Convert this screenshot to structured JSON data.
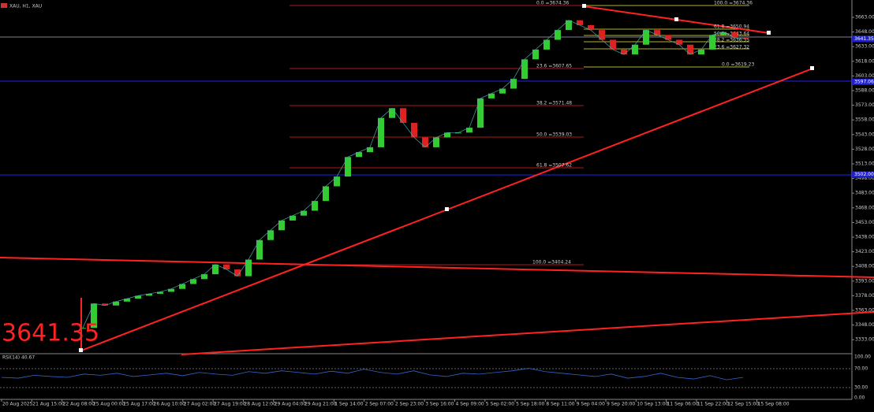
{
  "header": {
    "symbol": "XAU, H1, XAU"
  },
  "last_price": "3641.35",
  "price_axis": {
    "ticks": [
      {
        "value": 3663,
        "label": "3663.00"
      },
      {
        "value": 3648,
        "label": "3648.00"
      },
      {
        "value": 3633,
        "label": "3633.00"
      },
      {
        "value": 3618,
        "label": "3618.00"
      },
      {
        "value": 3603,
        "label": "3603.00"
      },
      {
        "value": 3588,
        "label": "3588.00"
      },
      {
        "value": 3573,
        "label": "3573.00"
      },
      {
        "value": 3558,
        "label": "3558.00"
      },
      {
        "value": 3543,
        "label": "3543.00"
      },
      {
        "value": 3528,
        "label": "3528.00"
      },
      {
        "value": 3513,
        "label": "3513.00"
      },
      {
        "value": 3498,
        "label": "3498.00"
      },
      {
        "value": 3483,
        "label": "3483.00"
      },
      {
        "value": 3468,
        "label": "3468.00"
      },
      {
        "value": 3453,
        "label": "3453.00"
      },
      {
        "value": 3438,
        "label": "3438.00"
      },
      {
        "value": 3423,
        "label": "3423.00"
      },
      {
        "value": 3408,
        "label": "3408.00"
      },
      {
        "value": 3393,
        "label": "3393.00"
      },
      {
        "value": 3378,
        "label": "3378.00"
      },
      {
        "value": 3363,
        "label": "3363.00"
      },
      {
        "value": 3348,
        "label": "3348.00"
      },
      {
        "value": 3333,
        "label": "3333.00"
      }
    ],
    "markers": [
      {
        "value": 3641,
        "label": "3641.35"
      },
      {
        "value": 3597,
        "label": "3597.06"
      },
      {
        "value": 3502,
        "label": "3502.00"
      }
    ]
  },
  "closes": [
    3345,
    3370,
    3368,
    3372,
    3375,
    3378,
    3380,
    3382,
    3385,
    3390,
    3395,
    3400,
    3410,
    3405,
    3398,
    3415,
    3435,
    3445,
    3455,
    3460,
    3465,
    3475,
    3490,
    3500,
    3520,
    3525,
    3530,
    3560,
    3570,
    3555,
    3540,
    3530,
    3540,
    3545,
    3545,
    3550,
    3580,
    3585,
    3590,
    3600,
    3620,
    3630,
    3640,
    3650,
    3660,
    3655,
    3650,
    3640,
    3630,
    3625,
    3635,
    3650,
    3645,
    3640,
    3635,
    3625,
    3630,
    3645,
    3648,
    3642,
    3641
  ],
  "fib_left": [
    "0.0 =3674.36",
    "23.6 =3607.65",
    "38.2 =3571.48",
    "50.0 =3539.03",
    "61.8 =3507.62",
    "100.0 =3404.24"
  ],
  "fib_right": [
    "100.0 =3674.36",
    "61.8 =3650.94",
    "50.0 =3643.64",
    "38.2 =3636.35",
    "23.6 =3627.32",
    "0.0 =3619.23"
  ],
  "rsi": {
    "label": "RSI(14) 40.67",
    "ticks": [
      "100.00",
      "70.00",
      "30.00",
      "0.00"
    ],
    "values": [
      50,
      48,
      55,
      52,
      50,
      58,
      55,
      60,
      52,
      56,
      60,
      54,
      62,
      58,
      55,
      64,
      60,
      66,
      62,
      58,
      65,
      60,
      70,
      62,
      58,
      66,
      56,
      52,
      60,
      58,
      62,
      66,
      72,
      64,
      60,
      56,
      52,
      58,
      48,
      52,
      60,
      50,
      46,
      54,
      44,
      50
    ]
  },
  "time_axis": [
    "20 Aug 2025",
    "21 Aug 15:00",
    "22 Aug 08:00",
    "25 Aug 00:00",
    "25 Aug 17:00",
    "26 Aug 10:00",
    "27 Aug 02:00",
    "27 Aug 19:00",
    "28 Aug 12:00",
    "29 Aug 04:00",
    "29 Aug 21:00",
    "1 Sep 14:00",
    "2 Sep 07:00",
    "2 Sep 23:00",
    "3 Sep 16:00",
    "4 Sep 09:00",
    "5 Sep 02:00",
    "5 Sep 18:00",
    "8 Sep 11:00",
    "9 Sep 04:00",
    "9 Sep 20:00",
    "10 Sep 13:00",
    "11 Sep 06:00",
    "11 Sep 22:00",
    "12 Sep 15:00",
    "15 Sep 08:00"
  ]
}
